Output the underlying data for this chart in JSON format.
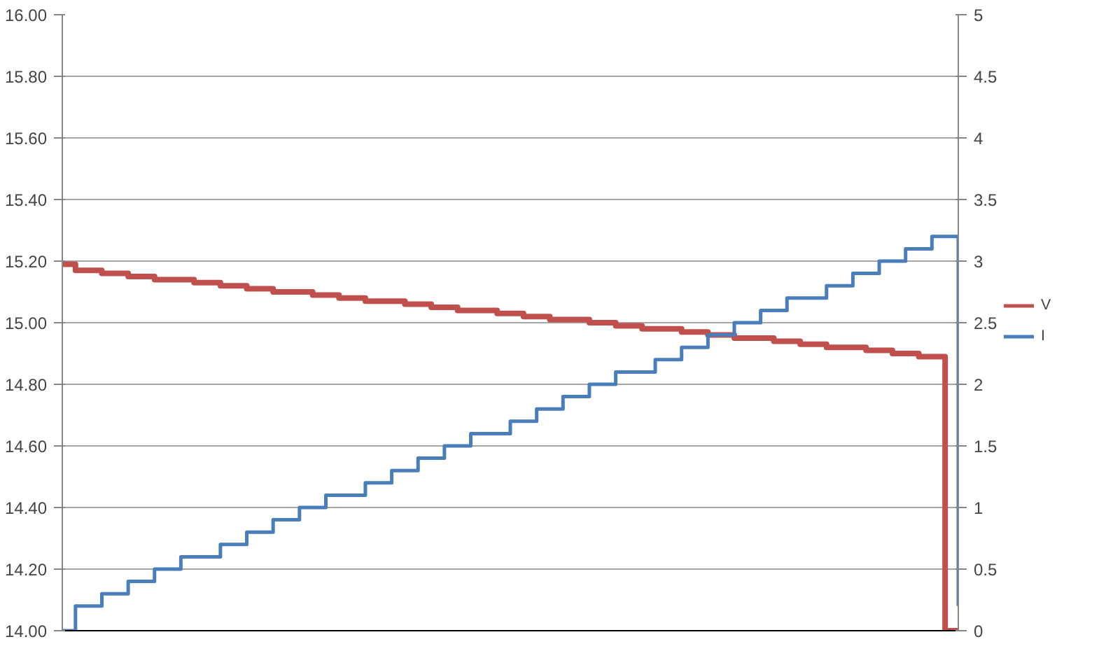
{
  "chart_data": {
    "type": "step",
    "categories": [
      null,
      null,
      null,
      null,
      null,
      null,
      null,
      null,
      null,
      null,
      null,
      null,
      null,
      null,
      null,
      null,
      null,
      null,
      null,
      null,
      null,
      null,
      null,
      null,
      null,
      null,
      null,
      null,
      null,
      null,
      null,
      null,
      null,
      null,
      null,
      null,
      null,
      null,
      null,
      null,
      null,
      null,
      null,
      null,
      null,
      null,
      null,
      null,
      null,
      null,
      null,
      null,
      null,
      null,
      null,
      null,
      null,
      null,
      null,
      null,
      null,
      null,
      null,
      null,
      null,
      null,
      null,
      null,
      null
    ],
    "series": [
      {
        "name": "V",
        "color": "#c0504d",
        "values": [
          15.19,
          15.17,
          15.17,
          15.16,
          15.16,
          15.15,
          15.15,
          15.14,
          15.14,
          15.14,
          15.13,
          15.13,
          15.12,
          15.12,
          15.11,
          15.11,
          15.1,
          15.1,
          15.1,
          15.09,
          15.09,
          15.08,
          15.08,
          15.07,
          15.07,
          15.07,
          15.06,
          15.06,
          15.05,
          15.05,
          15.04,
          15.04,
          15.04,
          15.03,
          15.03,
          15.02,
          15.02,
          15.01,
          15.01,
          15.01,
          15.0,
          15.0,
          14.99,
          14.99,
          14.98,
          14.98,
          14.98,
          14.97,
          14.97,
          14.96,
          14.96,
          14.95,
          14.95,
          14.95,
          14.94,
          14.94,
          14.93,
          14.93,
          14.92,
          14.92,
          14.92,
          14.91,
          14.91,
          14.9,
          14.9,
          14.89,
          14.89,
          14.0,
          14.0
        ]
      },
      {
        "name": "I",
        "color": "#4a7ebb",
        "axis": "y2",
        "values": [
          0,
          0.2,
          0.2,
          0.3,
          0.3,
          0.4,
          0.4,
          0.5,
          0.5,
          0.6,
          0.6,
          0.6,
          0.7,
          0.7,
          0.8,
          0.8,
          0.9,
          0.9,
          1.0,
          1.0,
          1.1,
          1.1,
          1.1,
          1.2,
          1.2,
          1.3,
          1.3,
          1.4,
          1.4,
          1.5,
          1.5,
          1.6,
          1.6,
          1.6,
          1.7,
          1.7,
          1.8,
          1.8,
          1.9,
          1.9,
          2.0,
          2.0,
          2.1,
          2.1,
          2.1,
          2.2,
          2.2,
          2.3,
          2.3,
          2.4,
          2.4,
          2.5,
          2.5,
          2.6,
          2.6,
          2.7,
          2.7,
          2.7,
          2.8,
          2.8,
          2.9,
          2.9,
          3.0,
          3.0,
          3.1,
          3.1,
          3.2,
          3.2,
          0.2
        ]
      }
    ],
    "ylim": [
      14,
      16
    ],
    "yticks": [
      {
        "value": 14,
        "label": "14.00"
      },
      {
        "value": 14.2,
        "label": "14.20"
      },
      {
        "value": 14.4,
        "label": "14.40"
      },
      {
        "value": 14.6,
        "label": "14.60"
      },
      {
        "value": 14.8,
        "label": "14.80"
      },
      {
        "value": 15,
        "label": "15.00"
      },
      {
        "value": 15.2,
        "label": "15.20"
      },
      {
        "value": 15.4,
        "label": "15.40"
      },
      {
        "value": 15.6,
        "label": "15.60"
      },
      {
        "value": 15.8,
        "label": "15.80"
      },
      {
        "value": 16,
        "label": "16.00"
      }
    ],
    "y2lim": [
      0,
      5
    ],
    "y2ticks": [
      0,
      0.5,
      1,
      1.5,
      2,
      2.5,
      3,
      3.5,
      4,
      4.5,
      5
    ],
    "grid": "y",
    "legend": "right",
    "tick_labels": "y"
  }
}
